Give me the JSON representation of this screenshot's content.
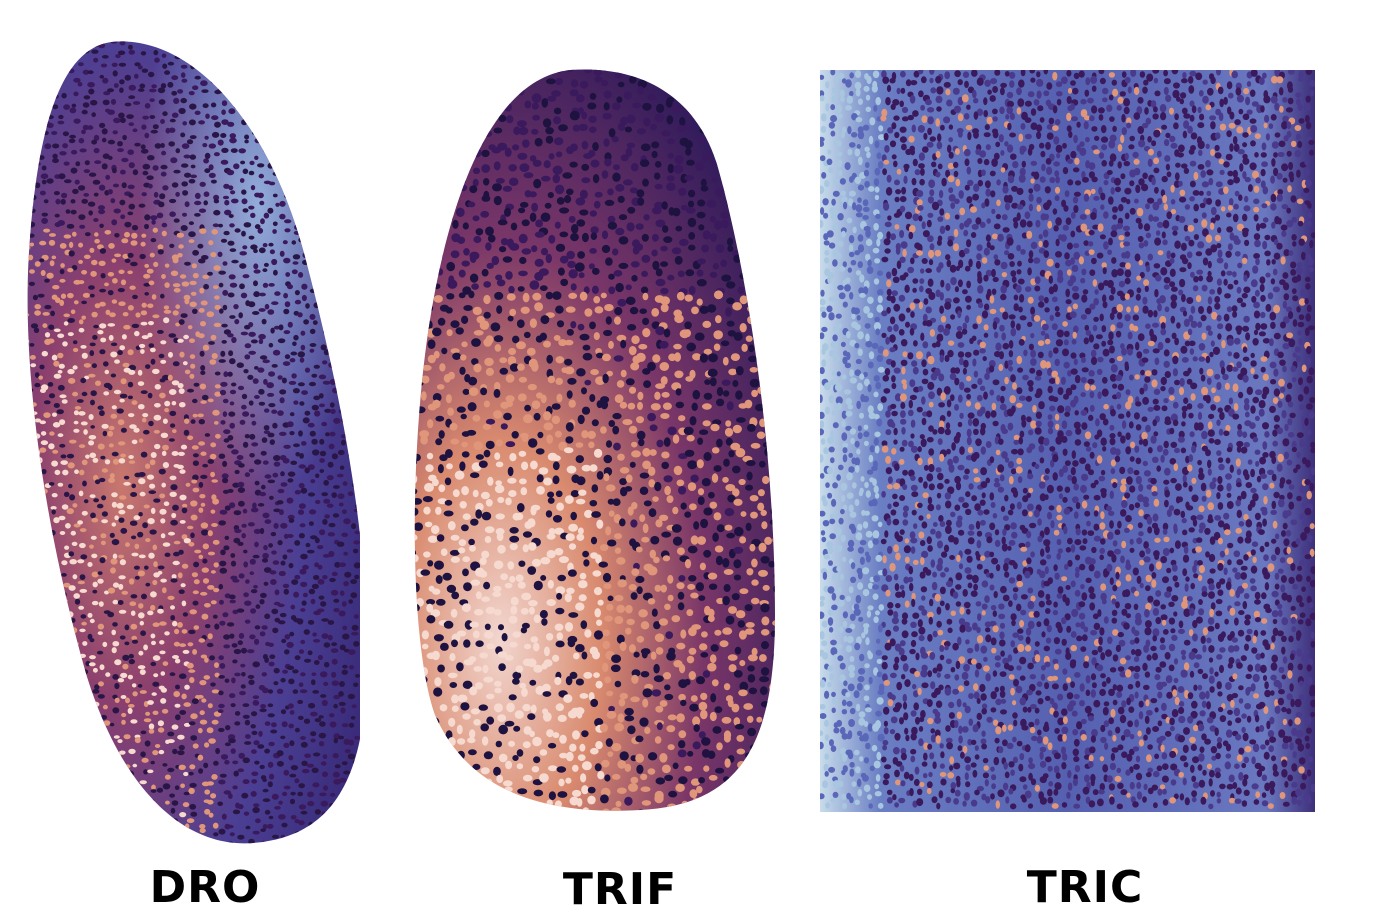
{
  "panels": [
    {
      "id": "dro",
      "label": "DRO"
    },
    {
      "id": "trif",
      "label": "TRIF"
    },
    {
      "id": "tric",
      "label": "TRIC"
    }
  ],
  "colors": {
    "background": "#ffffff",
    "dark_purple": "#3a1a5c",
    "mid_blue": "#5a66b8",
    "light_blue": "#a8c6e0",
    "salmon": "#e0967a",
    "pale_pink": "#f6d9cf"
  }
}
